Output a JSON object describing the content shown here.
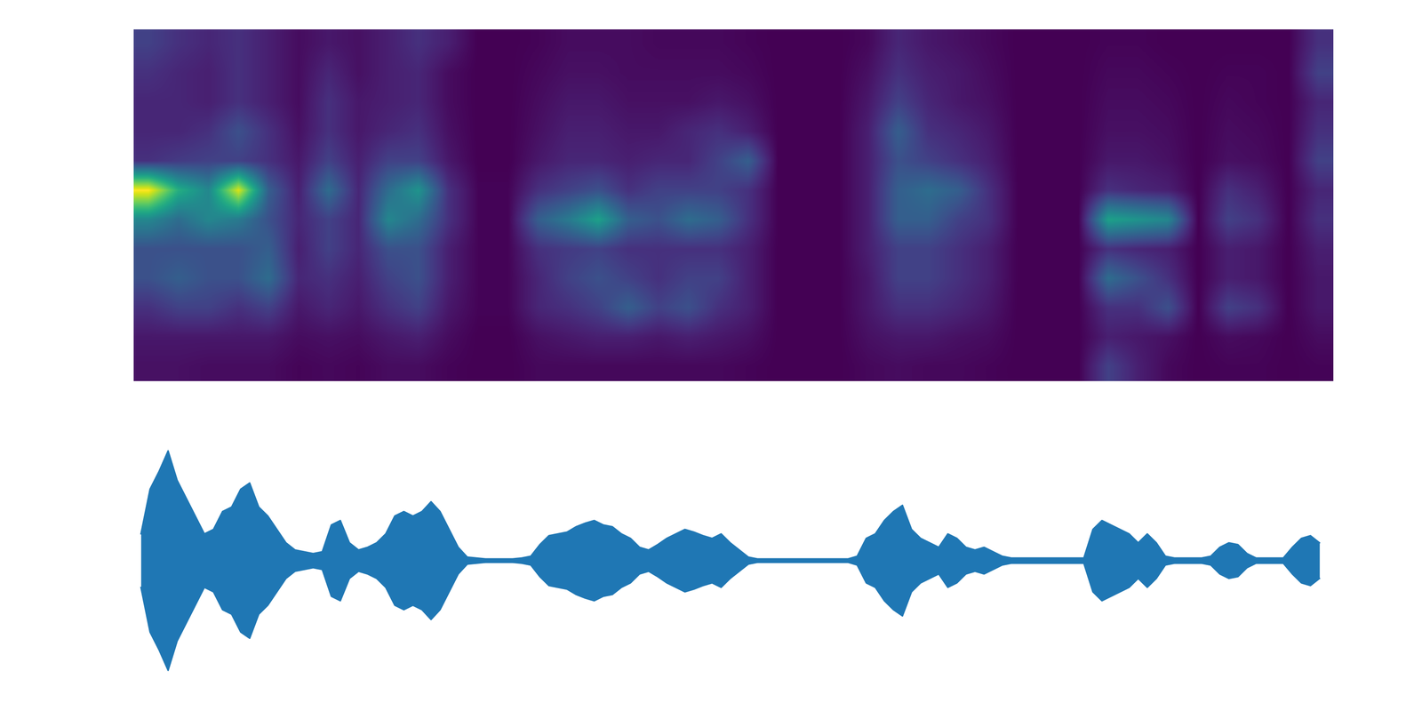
{
  "chart_data": [
    {
      "type": "heatmap",
      "tick_labels": false,
      "cells_by_column": [
        [
          0.2,
          0.15,
          0.12,
          0.12,
          0.15,
          0.95,
          0.45,
          0.25,
          0.25,
          0.15,
          0.08,
          0.06
        ],
        [
          0.15,
          0.12,
          0.12,
          0.12,
          0.18,
          0.6,
          0.35,
          0.25,
          0.3,
          0.2,
          0.08,
          0.06
        ],
        [
          0.12,
          0.1,
          0.1,
          0.15,
          0.2,
          0.45,
          0.45,
          0.25,
          0.25,
          0.2,
          0.08,
          0.05
        ],
        [
          0.15,
          0.15,
          0.15,
          0.25,
          0.2,
          0.9,
          0.4,
          0.25,
          0.25,
          0.15,
          0.08,
          0.05
        ],
        [
          0.1,
          0.1,
          0.1,
          0.15,
          0.15,
          0.3,
          0.25,
          0.3,
          0.35,
          0.2,
          0.08,
          0.05
        ],
        [
          0.05,
          0.05,
          0.05,
          0.06,
          0.08,
          0.1,
          0.12,
          0.1,
          0.12,
          0.08,
          0.05,
          0.03
        ],
        [
          0.08,
          0.12,
          0.15,
          0.15,
          0.2,
          0.35,
          0.2,
          0.2,
          0.15,
          0.12,
          0.06,
          0.04
        ],
        [
          0.06,
          0.06,
          0.08,
          0.08,
          0.1,
          0.12,
          0.12,
          0.12,
          0.1,
          0.08,
          0.05,
          0.03
        ],
        [
          0.1,
          0.1,
          0.1,
          0.12,
          0.2,
          0.35,
          0.45,
          0.25,
          0.2,
          0.15,
          0.08,
          0.05
        ],
        [
          0.15,
          0.12,
          0.12,
          0.15,
          0.2,
          0.5,
          0.35,
          0.25,
          0.25,
          0.2,
          0.1,
          0.05
        ],
        [
          0.1,
          0.05,
          0.05,
          0.06,
          0.08,
          0.15,
          0.15,
          0.1,
          0.1,
          0.08,
          0.05,
          0.03
        ],
        [
          0.02,
          0.02,
          0.02,
          0.02,
          0.02,
          0.03,
          0.03,
          0.03,
          0.03,
          0.03,
          0.02,
          0.02
        ],
        [
          0.02,
          0.02,
          0.02,
          0.02,
          0.02,
          0.03,
          0.03,
          0.03,
          0.03,
          0.03,
          0.02,
          0.02
        ],
        [
          0.03,
          0.04,
          0.05,
          0.06,
          0.08,
          0.15,
          0.3,
          0.15,
          0.12,
          0.12,
          0.06,
          0.04
        ],
        [
          0.05,
          0.06,
          0.08,
          0.1,
          0.12,
          0.2,
          0.4,
          0.18,
          0.2,
          0.15,
          0.08,
          0.04
        ],
        [
          0.05,
          0.06,
          0.08,
          0.1,
          0.12,
          0.25,
          0.55,
          0.2,
          0.25,
          0.2,
          0.1,
          0.04
        ],
        [
          0.05,
          0.05,
          0.06,
          0.08,
          0.1,
          0.15,
          0.3,
          0.15,
          0.2,
          0.3,
          0.1,
          0.04
        ],
        [
          0.04,
          0.05,
          0.06,
          0.08,
          0.12,
          0.2,
          0.25,
          0.15,
          0.15,
          0.2,
          0.08,
          0.04
        ],
        [
          0.04,
          0.05,
          0.06,
          0.12,
          0.12,
          0.2,
          0.35,
          0.15,
          0.2,
          0.25,
          0.1,
          0.04
        ],
        [
          0.04,
          0.05,
          0.08,
          0.15,
          0.2,
          0.2,
          0.3,
          0.15,
          0.2,
          0.15,
          0.08,
          0.04
        ],
        [
          0.03,
          0.04,
          0.06,
          0.1,
          0.3,
          0.15,
          0.15,
          0.1,
          0.1,
          0.1,
          0.06,
          0.03
        ],
        [
          0.02,
          0.02,
          0.02,
          0.02,
          0.02,
          0.02,
          0.02,
          0.02,
          0.02,
          0.02,
          0.02,
          0.02
        ],
        [
          0.02,
          0.02,
          0.02,
          0.02,
          0.02,
          0.02,
          0.02,
          0.02,
          0.02,
          0.02,
          0.02,
          0.02
        ],
        [
          0.02,
          0.02,
          0.02,
          0.02,
          0.02,
          0.02,
          0.02,
          0.02,
          0.02,
          0.02,
          0.02,
          0.02
        ],
        [
          0.04,
          0.06,
          0.08,
          0.1,
          0.1,
          0.1,
          0.1,
          0.1,
          0.08,
          0.08,
          0.06,
          0.04
        ],
        [
          0.12,
          0.15,
          0.2,
          0.3,
          0.25,
          0.3,
          0.3,
          0.2,
          0.2,
          0.15,
          0.08,
          0.05
        ],
        [
          0.08,
          0.1,
          0.12,
          0.15,
          0.2,
          0.35,
          0.3,
          0.2,
          0.2,
          0.15,
          0.08,
          0.04
        ],
        [
          0.06,
          0.08,
          0.08,
          0.12,
          0.15,
          0.3,
          0.2,
          0.15,
          0.15,
          0.12,
          0.06,
          0.04
        ],
        [
          0.04,
          0.05,
          0.06,
          0.08,
          0.1,
          0.15,
          0.15,
          0.1,
          0.1,
          0.08,
          0.05,
          0.03
        ],
        [
          0.02,
          0.02,
          0.02,
          0.02,
          0.02,
          0.02,
          0.02,
          0.02,
          0.02,
          0.02,
          0.02,
          0.02
        ],
        [
          0.02,
          0.02,
          0.02,
          0.02,
          0.02,
          0.02,
          0.02,
          0.02,
          0.02,
          0.02,
          0.02,
          0.02
        ],
        [
          0.02,
          0.02,
          0.02,
          0.02,
          0.02,
          0.02,
          0.02,
          0.02,
          0.02,
          0.02,
          0.02,
          0.02
        ],
        [
          0.03,
          0.04,
          0.05,
          0.06,
          0.08,
          0.15,
          0.55,
          0.15,
          0.35,
          0.15,
          0.1,
          0.2
        ],
        [
          0.03,
          0.04,
          0.05,
          0.06,
          0.08,
          0.12,
          0.5,
          0.12,
          0.25,
          0.15,
          0.08,
          0.1
        ],
        [
          0.02,
          0.03,
          0.04,
          0.05,
          0.06,
          0.1,
          0.45,
          0.1,
          0.15,
          0.25,
          0.06,
          0.04
        ],
        [
          0.02,
          0.02,
          0.02,
          0.02,
          0.02,
          0.02,
          0.02,
          0.02,
          0.02,
          0.02,
          0.02,
          0.02
        ],
        [
          0.02,
          0.03,
          0.04,
          0.05,
          0.06,
          0.15,
          0.2,
          0.1,
          0.1,
          0.2,
          0.05,
          0.03
        ],
        [
          0.02,
          0.03,
          0.03,
          0.04,
          0.05,
          0.1,
          0.15,
          0.08,
          0.08,
          0.15,
          0.04,
          0.03
        ],
        [
          0.02,
          0.02,
          0.02,
          0.02,
          0.02,
          0.02,
          0.02,
          0.02,
          0.02,
          0.02,
          0.02,
          0.02
        ],
        [
          0.15,
          0.2,
          0.12,
          0.15,
          0.2,
          0.12,
          0.15,
          0.1,
          0.08,
          0.08,
          0.05,
          0.03
        ]
      ]
    },
    {
      "type": "envelope",
      "tick_labels": false,
      "color": "#1f77b4",
      "xlim": [
        -0.8,
        131.5
      ],
      "ylim": [
        -1.5,
        1.5
      ],
      "values": [
        0.3,
        0.8,
        1.0,
        1.23,
        0.9,
        0.7,
        0.5,
        0.3,
        0.35,
        0.55,
        0.6,
        0.8,
        0.87,
        0.6,
        0.5,
        0.35,
        0.2,
        0.12,
        0.1,
        0.08,
        0.1,
        0.4,
        0.45,
        0.2,
        0.12,
        0.15,
        0.2,
        0.3,
        0.5,
        0.55,
        0.5,
        0.55,
        0.66,
        0.55,
        0.35,
        0.15,
        0.04,
        0.03,
        0.02,
        0.02,
        0.02,
        0.02,
        0.03,
        0.05,
        0.18,
        0.28,
        0.3,
        0.32,
        0.38,
        0.42,
        0.45,
        0.4,
        0.38,
        0.3,
        0.25,
        0.15,
        0.12,
        0.18,
        0.25,
        0.3,
        0.35,
        0.32,
        0.28,
        0.25,
        0.3,
        0.2,
        0.12,
        0.04,
        0.02,
        0.02,
        0.02,
        0.02,
        0.02,
        0.02,
        0.02,
        0.02,
        0.02,
        0.02,
        0.02,
        0.05,
        0.25,
        0.3,
        0.45,
        0.55,
        0.62,
        0.35,
        0.25,
        0.2,
        0.15,
        0.3,
        0.25,
        0.15,
        0.12,
        0.15,
        0.1,
        0.05,
        0.03,
        0.03,
        0.03,
        0.03,
        0.03,
        0.03,
        0.03,
        0.03,
        0.03,
        0.35,
        0.45,
        0.4,
        0.35,
        0.3,
        0.2,
        0.3,
        0.2,
        0.05,
        0.03,
        0.03,
        0.03,
        0.03,
        0.05,
        0.15,
        0.2,
        0.18,
        0.08,
        0.03,
        0.03,
        0.03,
        0.03,
        0.15,
        0.25,
        0.28,
        0.2
      ]
    }
  ]
}
